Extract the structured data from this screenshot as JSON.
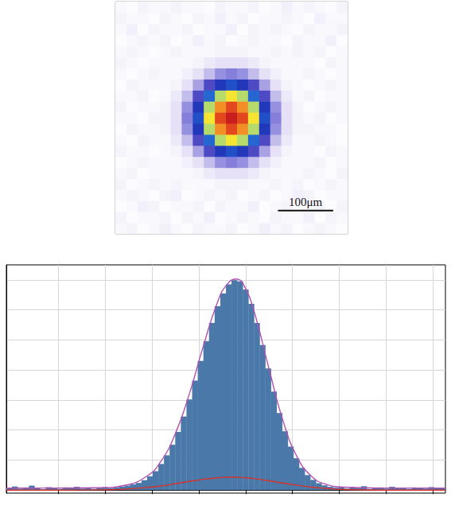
{
  "chart_data": [
    {
      "type": "heatmap",
      "xlim": [
        0,
        420
      ],
      "ylim": [
        0,
        420
      ],
      "zlim": [
        0,
        100
      ],
      "tick_labels": false,
      "x": [
        10,
        30,
        50,
        70,
        90,
        110,
        130,
        150,
        170,
        190,
        210,
        230,
        250,
        270,
        290,
        310,
        330,
        350,
        370,
        390,
        410
      ],
      "y": [
        10,
        30,
        50,
        70,
        90,
        110,
        130,
        150,
        170,
        190,
        210,
        230,
        250,
        270,
        290,
        310,
        330,
        350,
        370,
        390,
        410
      ],
      "values": [
        [
          2,
          3,
          1,
          2,
          4,
          2,
          1,
          3,
          2,
          2,
          3,
          1,
          2,
          4,
          2,
          3,
          1,
          2,
          3,
          2,
          1
        ],
        [
          3,
          1,
          2,
          2,
          3,
          1,
          3,
          2,
          4,
          1,
          2,
          3,
          2,
          1,
          3,
          2,
          2,
          4,
          1,
          3,
          2
        ],
        [
          1,
          2,
          4,
          3,
          1,
          2,
          2,
          3,
          1,
          3,
          2,
          2,
          4,
          1,
          2,
          3,
          1,
          2,
          3,
          1,
          3
        ],
        [
          2,
          3,
          2,
          1,
          3,
          4,
          1,
          2,
          3,
          2,
          3,
          1,
          2,
          3,
          1,
          2,
          4,
          3,
          1,
          2,
          2
        ],
        [
          3,
          1,
          2,
          3,
          2,
          3,
          2,
          2,
          2,
          3,
          3,
          3,
          2,
          2,
          3,
          2,
          3,
          1,
          2,
          3,
          2
        ],
        [
          2,
          3,
          1,
          2,
          2,
          2,
          2,
          3,
          6,
          8,
          8,
          8,
          6,
          3,
          2,
          2,
          2,
          3,
          2,
          1,
          3
        ],
        [
          1,
          2,
          3,
          2,
          2,
          2,
          4,
          8,
          14,
          19,
          21,
          19,
          14,
          8,
          4,
          2,
          2,
          2,
          3,
          1,
          2
        ],
        [
          3,
          2,
          2,
          1,
          2,
          3,
          8,
          17,
          28,
          37,
          41,
          37,
          28,
          17,
          8,
          3,
          2,
          2,
          1,
          3,
          2
        ],
        [
          2,
          1,
          3,
          2,
          2,
          6,
          14,
          28,
          45,
          61,
          67,
          61,
          45,
          28,
          14,
          6,
          2,
          2,
          3,
          2,
          1
        ],
        [
          1,
          3,
          2,
          2,
          3,
          8,
          19,
          37,
          61,
          82,
          91,
          82,
          61,
          37,
          19,
          8,
          3,
          3,
          2,
          2,
          1
        ],
        [
          2,
          2,
          1,
          3,
          3,
          8,
          21,
          41,
          67,
          91,
          100,
          91,
          67,
          41,
          21,
          8,
          3,
          2,
          3,
          1,
          2
        ],
        [
          3,
          1,
          2,
          2,
          3,
          8,
          19,
          37,
          61,
          82,
          91,
          82,
          61,
          37,
          19,
          8,
          3,
          1,
          2,
          3,
          2
        ],
        [
          2,
          2,
          3,
          1,
          2,
          6,
          14,
          28,
          45,
          61,
          67,
          61,
          45,
          28,
          14,
          6,
          2,
          3,
          1,
          2,
          2
        ],
        [
          1,
          3,
          2,
          2,
          2,
          3,
          8,
          17,
          28,
          37,
          41,
          37,
          28,
          17,
          8,
          3,
          2,
          1,
          2,
          3,
          2
        ],
        [
          2,
          1,
          2,
          3,
          2,
          2,
          4,
          8,
          14,
          19,
          21,
          19,
          14,
          8,
          4,
          2,
          2,
          3,
          2,
          1,
          2
        ],
        [
          3,
          2,
          1,
          2,
          2,
          2,
          2,
          3,
          6,
          8,
          8,
          8,
          6,
          3,
          2,
          2,
          2,
          2,
          1,
          3,
          2
        ],
        [
          2,
          3,
          2,
          1,
          2,
          3,
          2,
          2,
          2,
          3,
          3,
          3,
          2,
          2,
          3,
          2,
          3,
          2,
          3,
          1,
          2
        ],
        [
          1,
          2,
          3,
          2,
          3,
          1,
          2,
          4,
          2,
          3,
          1,
          2,
          3,
          2,
          2,
          1,
          3,
          2,
          2,
          4,
          1
        ],
        [
          2,
          4,
          1,
          3,
          2,
          2,
          3,
          1,
          2,
          2,
          4,
          1,
          3,
          2,
          3,
          2,
          1,
          3,
          2,
          2,
          3
        ],
        [
          3,
          2,
          2,
          1,
          3,
          2,
          1,
          3,
          2,
          4,
          2,
          3,
          1,
          2,
          2,
          3,
          2,
          1,
          4,
          2,
          2
        ],
        [
          2,
          1,
          3,
          2,
          2,
          3,
          2,
          2,
          1,
          3,
          2,
          2,
          3,
          1,
          2,
          4,
          2,
          3,
          2,
          1,
          3
        ]
      ],
      "scale_bar": {
        "label": "100μm",
        "value": 100
      }
    },
    {
      "type": "histogram",
      "color": "#4a78a8",
      "grid": true,
      "tick_labels": false,
      "xlim": [
        0,
        936
      ],
      "xticks": [
        110,
        210,
        310,
        410,
        510,
        610,
        710,
        810,
        910
      ],
      "ylim": [
        -1,
        75
      ],
      "yticks": [
        0,
        10,
        20,
        30,
        40,
        50,
        60,
        70
      ],
      "bins": [
        0,
        12,
        24,
        36,
        48,
        60,
        72,
        84,
        96,
        108,
        120,
        132,
        144,
        156,
        168,
        180,
        192,
        204,
        216,
        228,
        240,
        252,
        264,
        276,
        288,
        300,
        312,
        324,
        336,
        348,
        360,
        372,
        384,
        396,
        408,
        420,
        432,
        444,
        456,
        468,
        480,
        492,
        504,
        516,
        528,
        540,
        552,
        564,
        576,
        588,
        600,
        612,
        624,
        636,
        648,
        660,
        672,
        684,
        696,
        708,
        720,
        732,
        744,
        756,
        768,
        780,
        792,
        804,
        816,
        828,
        840,
        852,
        864,
        876,
        888,
        900,
        912,
        924,
        936
      ],
      "values": [
        0.8,
        1.2,
        0.5,
        0.9,
        1.5,
        0.6,
        0.3,
        1.0,
        0.7,
        0.4,
        0.9,
        0.6,
        1.1,
        0.5,
        0.8,
        0.4,
        0.7,
        1.0,
        0.6,
        0.9,
        1.2,
        1.5,
        1.9,
        2.4,
        3.3,
        4.6,
        6.3,
        8.7,
        11.6,
        15.1,
        19.4,
        24.5,
        30.2,
        36.5,
        43.0,
        49.6,
        55.7,
        61.2,
        65.5,
        68.5,
        69.9,
        69.5,
        66.8,
        62.0,
        55.7,
        48.3,
        40.5,
        32.8,
        25.7,
        19.6,
        14.5,
        10.6,
        7.4,
        5.0,
        3.4,
        2.3,
        1.6,
        1.1,
        0.8,
        1.0,
        0.5,
        0.9,
        0.6,
        1.3,
        0.4,
        0.7,
        0.9,
        0.5,
        1.1,
        0.6,
        0.8,
        0.4,
        0.9,
        0.7,
        0.5,
        1.0,
        0.6,
        0.8
      ],
      "series": [
        {
          "type": "line",
          "color": "#b050b4",
          "x": [
            0,
            100,
            200,
            250,
            300,
            330,
            360,
            390,
            420,
            450,
            470,
            490,
            510,
            530,
            560,
            590,
            620,
            650,
            680,
            720,
            800,
            936
          ],
          "values": [
            0.7,
            0.7,
            0.8,
            1.5,
            4.7,
            9.7,
            18.7,
            32.0,
            48.0,
            62.5,
            68.4,
            70.3,
            67.1,
            58.5,
            40.3,
            23.0,
            11.0,
            4.7,
            2.0,
            1.0,
            0.7,
            0.7
          ]
        },
        {
          "type": "line",
          "color": "#d6322c",
          "x": [
            0,
            100,
            200,
            250,
            300,
            330,
            360,
            390,
            420,
            450,
            470,
            490,
            510,
            530,
            560,
            590,
            620,
            650,
            680,
            720,
            800,
            936
          ],
          "values": [
            0,
            0,
            0.1,
            0.3,
            0.9,
            1.4,
            2.1,
            2.9,
            3.6,
            4.1,
            4.3,
            4.3,
            4.1,
            3.8,
            3.1,
            2.3,
            1.6,
            1.0,
            0.6,
            0.2,
            0,
            0
          ]
        }
      ]
    }
  ]
}
